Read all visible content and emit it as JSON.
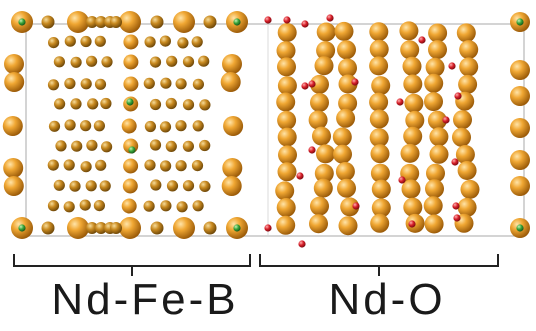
{
  "regions": [
    {
      "label": "Nd-Fe-B"
    },
    {
      "label": "Nd-O"
    }
  ],
  "colors": {
    "nd_atom": "#e8961e",
    "fe_atom": "#c98a20",
    "boron_atom": "#3aa63a",
    "oxygen_atom": "#d8202a",
    "cell_box": "#b8b8b8",
    "bracket": "#222222"
  }
}
